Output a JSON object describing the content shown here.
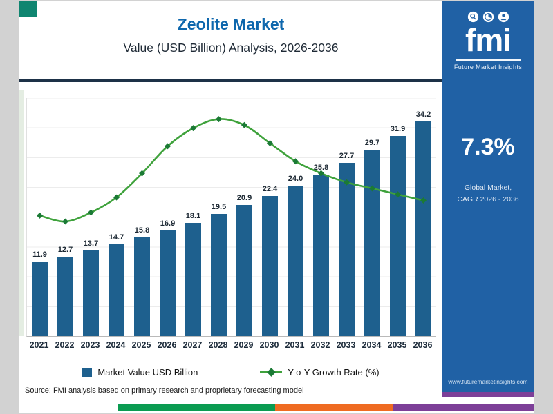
{
  "chart_data": {
    "type": "bar",
    "title": "Zeolite Market",
    "subtitle": "Value (USD Billion) Analysis, 2026-2036",
    "categories": [
      "2021",
      "2022",
      "2023",
      "2024",
      "2025",
      "2026",
      "2027",
      "2028",
      "2029",
      "2030",
      "2031",
      "2032",
      "2033",
      "2034",
      "2035",
      "2036"
    ],
    "series": [
      {
        "name": "Market Value USD Billion",
        "type": "bar",
        "values": [
          11.9,
          12.7,
          13.7,
          14.7,
          15.8,
          16.9,
          18.1,
          19.5,
          20.9,
          22.4,
          24.0,
          25.8,
          27.7,
          29.7,
          31.9,
          34.2
        ]
      },
      {
        "name": "Y-o-Y Growth Rate (%)",
        "type": "line",
        "values": [
          6.7,
          6.5,
          6.8,
          7.3,
          8.1,
          9.0,
          9.6,
          9.9,
          9.7,
          9.1,
          8.5,
          8.1,
          7.8,
          7.6,
          7.4,
          7.2
        ]
      }
    ],
    "value_labels": [
      "11.9",
      "12.7",
      "13.7",
      "14.7",
      "15.8",
      "16.9",
      "18.1",
      "19.5",
      "20.9",
      "22.4",
      "24.0",
      "25.8",
      "27.7",
      "29.7",
      "31.9",
      "34.2"
    ],
    "ylim": [
      0,
      38
    ],
    "line_axis_range": [
      2.7,
      10.6
    ],
    "grid": true,
    "legend_position": "bottom",
    "colors": {
      "bar": "#1e608e",
      "line": "#3fa23c",
      "marker": "#1b7a35"
    }
  },
  "source": "Source: FMI analysis based on primary research and proprietary forecasting model",
  "sidebar": {
    "logo_icons": [
      "magnifier-icon",
      "pie-chart-icon",
      "person-icon"
    ],
    "logo_word": "fmi",
    "logo_tagline": "Future Market Insights",
    "stat": "7.3%",
    "caption_line1": "Global Market,",
    "caption_line2": "CAGR 2026 - 2036",
    "website": "www.futuremarketinsights.com",
    "bg_color": "#2061a5"
  },
  "accent_colors": {
    "corner_teal": "#0f8570",
    "strip_green": "#0a9b51",
    "strip_orange": "#ef6b21",
    "strip_purple": "#7d3f98"
  }
}
